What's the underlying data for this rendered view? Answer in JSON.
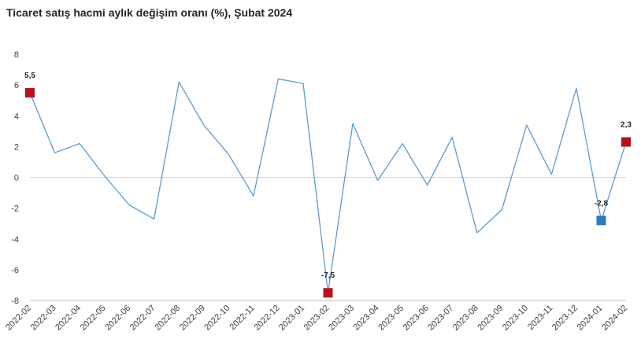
{
  "title": "Ticaret satış hacmi aylık değişim oranı (%), Şubat 2024",
  "chart_data": {
    "type": "line",
    "title": "Ticaret satış hacmi aylık değişim oranı (%), Şubat 2024",
    "xlabel": "",
    "ylabel": "",
    "ylim": [
      -8,
      8
    ],
    "yticks": [
      -8,
      -6,
      -4,
      -2,
      0,
      2,
      4,
      6,
      8
    ],
    "grid": false,
    "legend": "none",
    "categories": [
      "2022-02",
      "2022-03",
      "2022-04",
      "2022-05",
      "2022-06",
      "2022-07",
      "2022-08",
      "2022-09",
      "2022-10",
      "2022-11",
      "2022-12",
      "2023-01",
      "2023-02",
      "2023-03",
      "2023-04",
      "2023-05",
      "2023-06",
      "2023-07",
      "2023-08",
      "2023-09",
      "2023-10",
      "2023-11",
      "2023-12",
      "2024-01",
      "2024-02"
    ],
    "series": [
      {
        "values": [
          5.5,
          1.6,
          2.2,
          0.1,
          -1.8,
          -2.7,
          6.2,
          3.4,
          1.5,
          -1.2,
          6.4,
          6.1,
          -7.5,
          3.5,
          -0.2,
          2.2,
          -0.5,
          2.6,
          -3.6,
          -2.1,
          3.4,
          0.2,
          5.8,
          -2.8,
          2.3
        ]
      }
    ],
    "highlighted_points": [
      {
        "category": "2022-02",
        "value": 5.5,
        "label": "5,5",
        "color": "#b5121b"
      },
      {
        "category": "2023-02",
        "value": -7.5,
        "label": "-7,5",
        "color": "#b5121b"
      },
      {
        "category": "2024-01",
        "value": -2.8,
        "label": "-2,8",
        "color": "#2e7ab8"
      },
      {
        "category": "2024-02",
        "value": 2.3,
        "label": "2,3",
        "color": "#b5121b"
      }
    ],
    "colors": {
      "line": "#5b9bd5",
      "zero_line": "#d9d9d9",
      "axis": "#bfbfbf"
    }
  }
}
